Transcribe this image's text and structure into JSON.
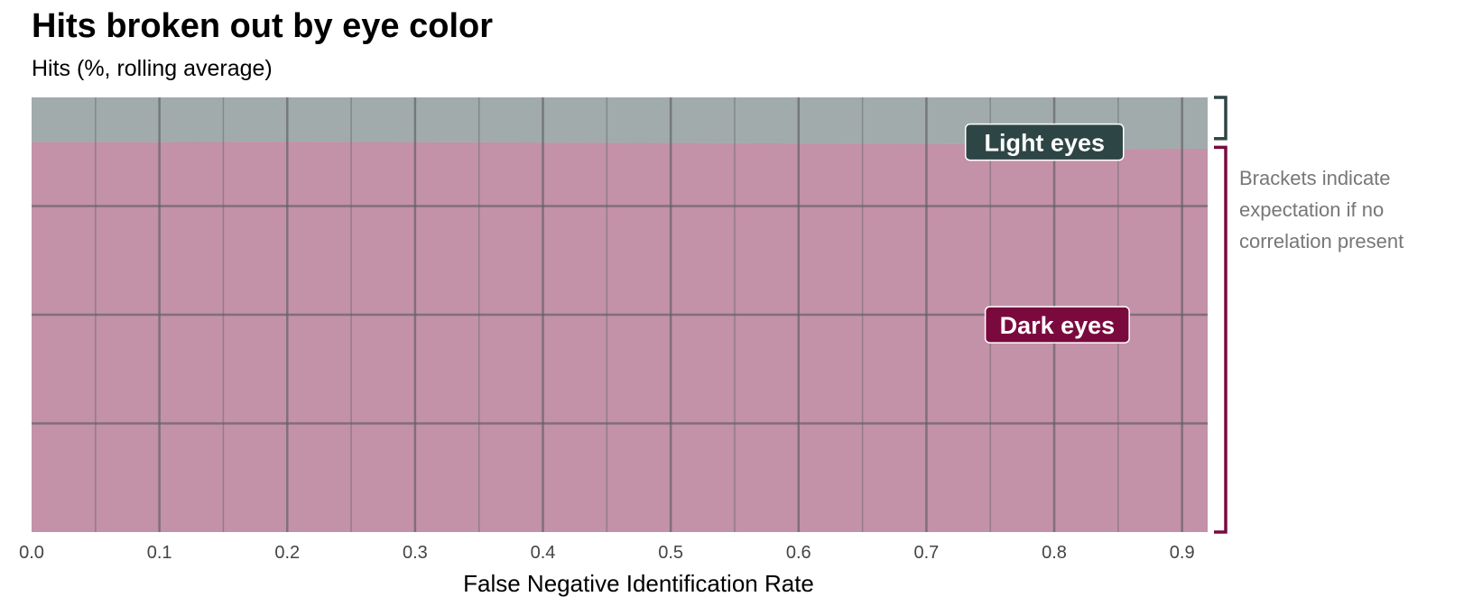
{
  "chart_data": {
    "type": "area",
    "title": "Hits broken out by eye color",
    "subtitle": "Hits (%, rolling average)",
    "xlabel": "False Negative Identification Rate",
    "ylabel": "",
    "xlim": [
      0,
      0.92
    ],
    "ylim": [
      0,
      100
    ],
    "x_ticks": [
      0.0,
      0.1,
      0.2,
      0.3,
      0.4,
      0.5,
      0.6,
      0.7,
      0.8,
      0.9
    ],
    "x_tick_labels": [
      "0.0",
      "0.1",
      "0.2",
      "0.3",
      "0.4",
      "0.5",
      "0.6",
      "0.7",
      "0.8",
      "0.9"
    ],
    "x_minor_ticks": [
      0.05,
      0.15,
      0.25,
      0.35,
      0.45,
      0.55,
      0.65,
      0.75,
      0.85
    ],
    "y_gridlines": [
      25,
      50,
      75
    ],
    "grid": true,
    "stacked": true,
    "x": [
      0.0,
      0.1,
      0.2,
      0.3,
      0.4,
      0.5,
      0.6,
      0.7,
      0.75,
      0.8,
      0.85,
      0.9,
      0.92
    ],
    "series": [
      {
        "name": "Dark eyes",
        "color": "#7a0a3e",
        "values": [
          89.7,
          89.7,
          89.8,
          89.7,
          89.6,
          89.5,
          89.4,
          89.3,
          89.2,
          89.2,
          88.1,
          88.2,
          88.2
        ]
      },
      {
        "name": "Light eyes",
        "color": "#2e4545",
        "values": [
          10.3,
          10.3,
          10.2,
          10.3,
          10.4,
          10.5,
          10.6,
          10.7,
          10.8,
          10.8,
          11.9,
          11.8,
          11.8
        ]
      }
    ],
    "series_labels": [
      {
        "text": "Light eyes",
        "x": 0.75,
        "y": 89.7,
        "color": "#2e4545"
      },
      {
        "text": "Dark eyes",
        "x": 0.76,
        "y": 47.7,
        "color": "#7a0a3e"
      }
    ],
    "brackets": [
      {
        "series": "Light eyes",
        "from": 90.5,
        "to": 100,
        "color": "#2e4545"
      },
      {
        "series": "Dark eyes",
        "from": 0,
        "to": 88.5,
        "color": "#7a0a3e"
      }
    ],
    "annotation": "Brackets indicate expectation if no correlation present"
  }
}
